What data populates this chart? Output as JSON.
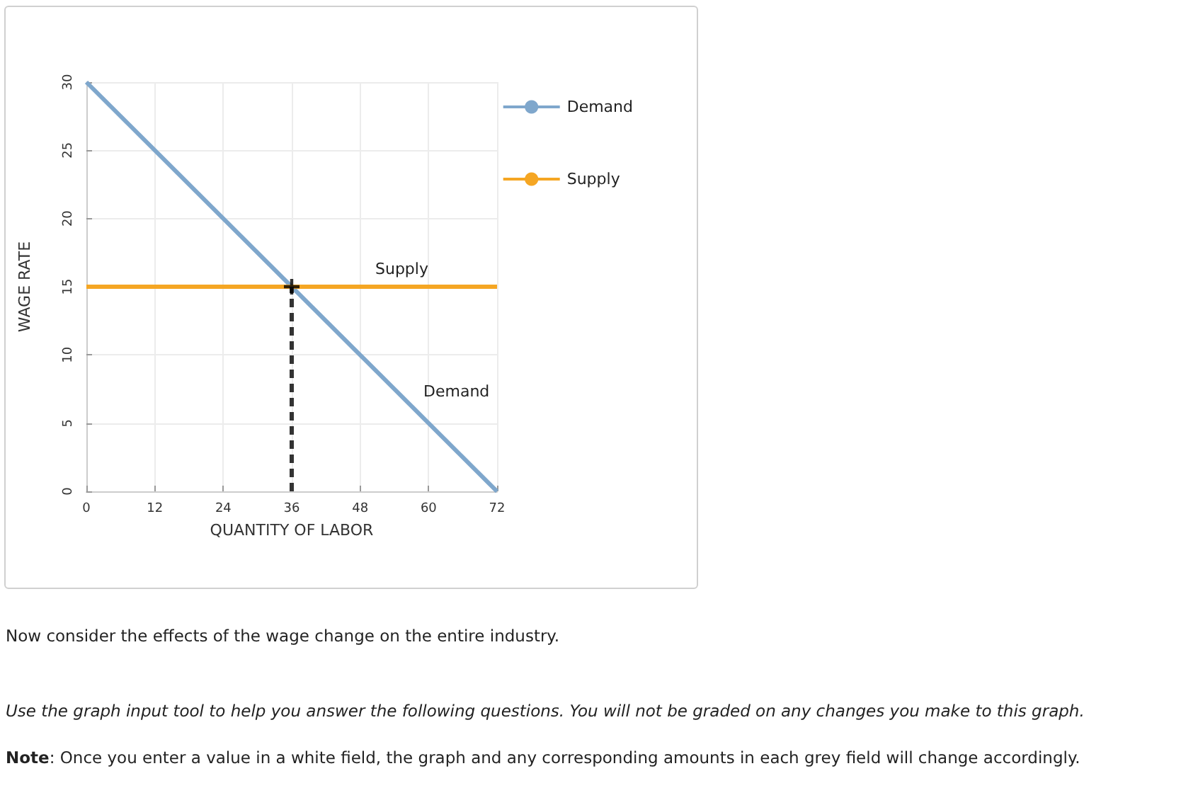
{
  "chart_data": {
    "type": "line",
    "xlabel": "QUANTITY OF LABOR",
    "ylabel": "WAGE RATE",
    "xlim": [
      0,
      72
    ],
    "xticks": [
      0,
      12,
      24,
      36,
      48,
      60,
      72
    ],
    "ylim": [
      0,
      30
    ],
    "yticks": [
      0,
      5,
      10,
      15,
      20,
      25,
      30
    ],
    "grid": true,
    "legend": "right",
    "series": [
      {
        "name": "Demand",
        "color": "#7fa7cc",
        "x": [
          0,
          72
        ],
        "values": [
          30,
          0
        ]
      },
      {
        "name": "Supply",
        "color": "#f5a623",
        "x": [
          0,
          72
        ],
        "values": [
          15,
          15
        ]
      },
      {
        "color": "#333333",
        "x": [
          36,
          36
        ],
        "values": [
          0,
          15
        ],
        "line_style": "dashed",
        "marker": "none"
      },
      {
        "type": "scatter",
        "color": "#000000",
        "x": [
          36
        ],
        "values": [
          15
        ],
        "marker": "cross"
      }
    ],
    "annotations": [
      "Now consider the effects of the wage change on the entire industry.",
      "Use the graph input tool to help you answer the following questions. You will not be graded on any changes you make to this graph.",
      "Note: Once you enter a value in a white field, the graph and any corresponding amounts in each grey field will change accordingly."
    ]
  }
}
